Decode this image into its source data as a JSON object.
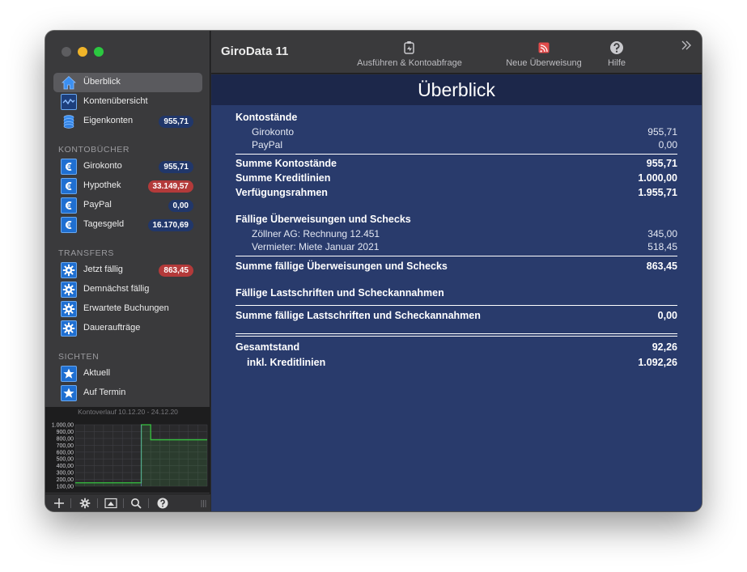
{
  "app": {
    "title": "GiroData 11"
  },
  "toolbar": {
    "execute_label": "Ausführen & Kontoabfrage",
    "transfer_label": "Neue Überweisung",
    "help_label": "Hilfe"
  },
  "sidebar": {
    "top_items": [
      {
        "label": "Überblick",
        "icon": "home-icon"
      },
      {
        "label": "Kontenübersicht",
        "icon": "chart-line-icon"
      },
      {
        "label": "Eigenkonten",
        "icon": "coins-stack-icon",
        "badge": "955,71"
      }
    ],
    "accounts_title": "KONTOBÜCHER",
    "accounts": [
      {
        "label": "Girokonto",
        "badge": "955,71"
      },
      {
        "label": "Hypothek",
        "badge": "33.149,57"
      },
      {
        "label": "PayPal",
        "badge": "0,00"
      },
      {
        "label": "Tagesgeld",
        "badge": "16.170,69"
      }
    ],
    "transfers_title": "TRANSFERS",
    "transfers": [
      {
        "label": "Jetzt fällig",
        "badge": "863,45"
      },
      {
        "label": "Demnächst fällig"
      },
      {
        "label": "Erwartete Buchungen"
      },
      {
        "label": "Daueraufträge"
      }
    ],
    "views_title": "SICHTEN",
    "views": [
      {
        "label": "Aktuell"
      },
      {
        "label": "Auf Termin"
      }
    ]
  },
  "mini_chart": {
    "caption": "Kontoverlauf 10.12.20 - 24.12.20",
    "y_ticks": [
      "1.000,00",
      "900,00",
      "800,00",
      "700,00",
      "600,00",
      "500,00",
      "400,00",
      "300,00",
      "200,00",
      "100,00"
    ]
  },
  "chart_data": {
    "type": "line",
    "title": "Kontoverlauf 10.12.20 - 24.12.20",
    "ylim": [
      100,
      1000
    ],
    "x": [
      0,
      7,
      7.01,
      8,
      8.01,
      14
    ],
    "values": [
      150,
      150,
      1000,
      1000,
      780,
      780
    ],
    "grid": true,
    "colors": [
      "#36c23f"
    ]
  },
  "main": {
    "page_title": "Überblick",
    "balances_title": "Kontostände",
    "balances": [
      {
        "label": "Girokonto",
        "value": "955,71"
      },
      {
        "label": "PayPal",
        "value": "0,00"
      }
    ],
    "sum_balances": {
      "label": "Summe Kontostände",
      "value": "955,71"
    },
    "sum_credit": {
      "label": "Summe Kreditlinien",
      "value": "1.000,00"
    },
    "available": {
      "label": "Verfügungsrahmen",
      "value": "1.955,71"
    },
    "due_transfers_title": "Fällige Überweisungen und Schecks",
    "due_transfers": [
      {
        "label": "Zöllner AG: Rechnung 12.451",
        "value": "345,00"
      },
      {
        "label": "Vermieter: Miete Januar 2021",
        "value": "518,45"
      }
    ],
    "sum_due_transfers": {
      "label": "Summe fällige Überweisungen und Schecks",
      "value": "863,45"
    },
    "due_debits_title": "Fällige Lastschriften und Scheckannahmen",
    "sum_due_debits": {
      "label": "Summe fällige Lastschriften und Scheckannahmen",
      "value": "0,00"
    },
    "total": {
      "label": "Gesamtstand",
      "value": "92,26"
    },
    "total_incl": {
      "label": "inkl. Kreditlinien",
      "value": "1.092,26"
    }
  },
  "colors": {
    "content_bg": "#293b6c",
    "header_bg": "#1c274a",
    "sidebar_bg": "#3a3a3c",
    "badge_blue": "#21376a",
    "badge_red": "#b33a3a",
    "chart_line": "#36c23f"
  }
}
